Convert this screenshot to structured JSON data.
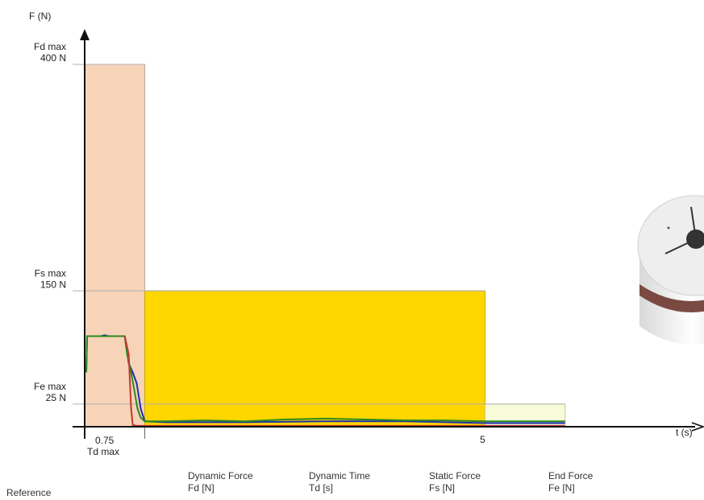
{
  "chart_data": {
    "type": "line",
    "title": "",
    "ylabel": "F (N)",
    "xlabel": "t (s)",
    "xlim": [
      0,
      7.0
    ],
    "ylim": [
      0,
      420
    ],
    "x_ticks": [
      {
        "value": 0.75,
        "label": "0.75",
        "sublabel": "Td max"
      },
      {
        "value": 5,
        "label": "5"
      }
    ],
    "y_ticks": [
      {
        "value": 400,
        "label": "400 N",
        "sublabel": "Fd max"
      },
      {
        "value": 150,
        "label": "150 N",
        "sublabel": "Fs max"
      },
      {
        "value": 25,
        "label": "25 N",
        "sublabel": "Fe max"
      }
    ],
    "zones": [
      {
        "x0": 0,
        "x1": 0.75,
        "y0": 0,
        "y1": 400,
        "color": "#f7d3b8",
        "edge": "#b9a79a"
      },
      {
        "x0": 0.75,
        "x1": 5,
        "y0": 0,
        "y1": 150,
        "color": "#ffd600",
        "edge": "#c8a800"
      },
      {
        "x0": 5,
        "x1": 6,
        "y0": 0,
        "y1": 25,
        "color": "#f8fbd8",
        "edge": "#c8c8a8"
      }
    ],
    "series": [
      {
        "color": "#1f2fb0",
        "x": [
          0.02,
          0.03,
          0.2,
          0.25,
          0.3,
          0.5,
          0.55,
          0.6,
          0.65,
          0.7,
          0.75,
          1,
          2,
          3,
          4,
          5,
          6
        ],
        "y": [
          60,
          100,
          100,
          101,
          100,
          100,
          70,
          60,
          48,
          20,
          6,
          5,
          5,
          6,
          6,
          4,
          4
        ]
      },
      {
        "color": "#2a8a1e",
        "x": [
          0.02,
          0.03,
          0.5,
          0.53,
          0.58,
          0.62,
          0.66,
          0.7,
          0.75,
          1,
          1.5,
          2,
          2.5,
          3,
          3.5,
          4,
          4.5,
          5,
          5.5,
          6
        ],
        "y": [
          60,
          100,
          100,
          80,
          60,
          40,
          20,
          10,
          6,
          6,
          7,
          6,
          8,
          9,
          8,
          7,
          7,
          6,
          6,
          6
        ]
      },
      {
        "color": "#c0392b",
        "x": [
          0.5,
          0.55,
          0.58,
          0.6,
          0.65,
          1,
          2,
          3,
          4,
          5,
          6
        ],
        "y": [
          100,
          80,
          20,
          2,
          1,
          1,
          1,
          1,
          1,
          1,
          1
        ]
      }
    ]
  },
  "footer": {
    "reference": "Reference",
    "columns": [
      {
        "line1": "Dynamic Force",
        "line2": "Fd [N]"
      },
      {
        "line1": "Dynamic Time",
        "line2": "Td [s]"
      },
      {
        "line1": "Static Force",
        "line2": "Fs [N]"
      },
      {
        "line1": "End Force",
        "line2": "Fe [N]"
      }
    ]
  }
}
